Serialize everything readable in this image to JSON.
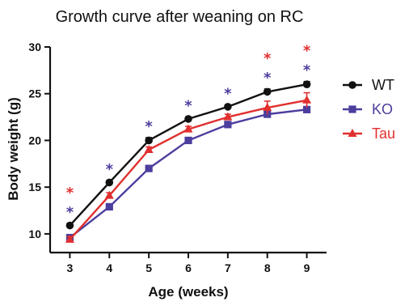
{
  "chart_data": {
    "type": "line",
    "title": "Growth curve after weaning on RC",
    "xlabel": "Age (weeks)",
    "ylabel": "Body weight (g)",
    "x": [
      3,
      4,
      5,
      6,
      7,
      8,
      9
    ],
    "xlim": [
      2.5,
      9.5
    ],
    "ylim": [
      8,
      30
    ],
    "yticks": [
      10,
      15,
      20,
      25,
      30
    ],
    "xticks": [
      3,
      4,
      5,
      6,
      7,
      8,
      9
    ],
    "grid": false,
    "legend_position": "right",
    "series": [
      {
        "name": "WT",
        "color": "#111111",
        "marker": "circle",
        "values": [
          10.9,
          15.5,
          20.0,
          22.3,
          23.6,
          25.2,
          26.0
        ],
        "errors": [
          0.2,
          0.2,
          0.3,
          0.2,
          0.2,
          0.3,
          0.3
        ]
      },
      {
        "name": "KO",
        "color": "#4b3e9e",
        "marker": "square",
        "values": [
          9.6,
          12.9,
          17.0,
          20.0,
          21.7,
          22.8,
          23.3
        ],
        "errors": [
          0.3,
          0.3,
          0.3,
          0.3,
          0.3,
          0.3,
          0.3
        ]
      },
      {
        "name": "Tau",
        "color": "#e0302f",
        "marker": "triangle",
        "values": [
          9.4,
          14.1,
          19.0,
          21.2,
          22.5,
          23.5,
          24.3
        ],
        "errors": [
          0.3,
          0.3,
          0.3,
          0.3,
          0.3,
          0.7,
          0.8
        ]
      }
    ],
    "annotations": [
      {
        "x": 3,
        "text": "*",
        "color": "#e0302f",
        "level": 2
      },
      {
        "x": 3,
        "text": "*",
        "color": "#4b3e9e",
        "level": 1
      },
      {
        "x": 4,
        "text": "*",
        "color": "#4b3e9e",
        "level": 1
      },
      {
        "x": 5,
        "text": "*",
        "color": "#4b3e9e",
        "level": 1
      },
      {
        "x": 6,
        "text": "*",
        "color": "#4b3e9e",
        "level": 1
      },
      {
        "x": 7,
        "text": "*",
        "color": "#4b3e9e",
        "level": 1
      },
      {
        "x": 8,
        "text": "*",
        "color": "#e0302f",
        "level": 2
      },
      {
        "x": 8,
        "text": "*",
        "color": "#4b3e9e",
        "level": 1
      },
      {
        "x": 9,
        "text": "*",
        "color": "#e0302f",
        "level": 2
      },
      {
        "x": 9,
        "text": "*",
        "color": "#4b3e9e",
        "level": 1
      }
    ]
  }
}
